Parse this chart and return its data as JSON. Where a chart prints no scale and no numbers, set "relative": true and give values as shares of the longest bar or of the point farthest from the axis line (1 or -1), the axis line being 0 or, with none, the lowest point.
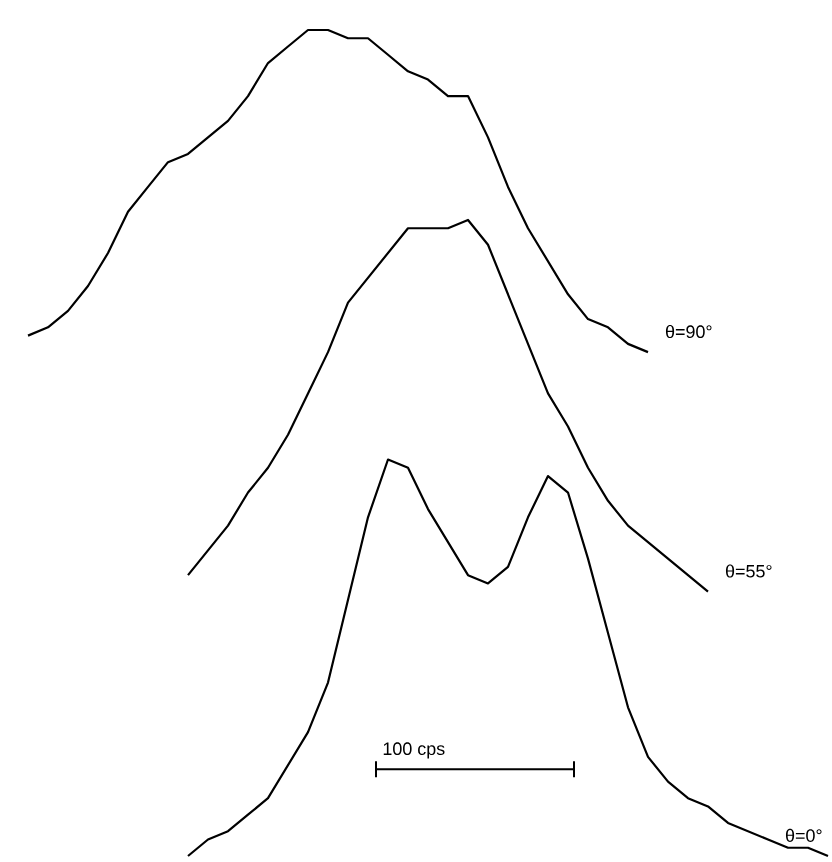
{
  "chart_data": {
    "type": "line",
    "relative": true,
    "line_style": "solid",
    "categories": [
      null,
      null,
      null,
      null,
      null,
      null,
      null,
      null,
      null,
      null,
      null,
      null,
      null,
      null,
      null,
      null,
      null,
      null,
      null,
      null,
      null,
      null,
      null,
      null,
      null,
      null,
      null,
      null,
      null,
      null,
      null,
      null,
      null,
      null,
      null,
      null,
      null,
      null,
      null,
      null,
      null
    ],
    "series": [
      {
        "name": "θ=90°",
        "color": "#000000",
        "values": [
          0.63,
          0.64,
          0.66,
          0.69,
          0.73,
          0.78,
          0.81,
          0.84,
          0.85,
          0.87,
          0.89,
          0.92,
          0.96,
          0.98,
          1.0,
          1.0,
          0.99,
          0.99,
          0.97,
          0.95,
          0.94,
          0.92,
          0.92,
          0.87,
          0.81,
          0.76,
          0.72,
          0.68,
          0.65,
          0.64,
          0.62,
          0.61,
          null,
          null,
          null,
          null,
          null,
          null,
          null,
          null,
          null
        ]
      },
      {
        "name": "θ=55°",
        "color": "#000000",
        "values": [
          null,
          null,
          null,
          null,
          null,
          null,
          null,
          null,
          0.34,
          0.37,
          0.4,
          0.44,
          0.47,
          0.51,
          0.56,
          0.61,
          0.67,
          0.7,
          0.73,
          0.76,
          0.76,
          0.76,
          0.77,
          0.74,
          0.68,
          0.62,
          0.56,
          0.52,
          0.47,
          0.43,
          0.4,
          0.38,
          0.36,
          0.34,
          0.32,
          null,
          null,
          null,
          null,
          null,
          null
        ]
      },
      {
        "name": "θ=0°",
        "color": "#000000",
        "values": [
          null,
          null,
          null,
          null,
          null,
          null,
          null,
          null,
          0.0,
          0.02,
          0.03,
          0.05,
          0.07,
          0.11,
          0.15,
          0.21,
          0.31,
          0.41,
          0.48,
          0.47,
          0.42,
          0.38,
          0.34,
          0.33,
          0.35,
          0.41,
          0.46,
          0.44,
          0.36,
          0.27,
          0.18,
          0.12,
          0.09,
          0.07,
          0.06,
          0.04,
          0.03,
          0.02,
          0.01,
          0.01,
          0.0
        ]
      }
    ],
    "annotations": [
      "100 cps"
    ]
  }
}
